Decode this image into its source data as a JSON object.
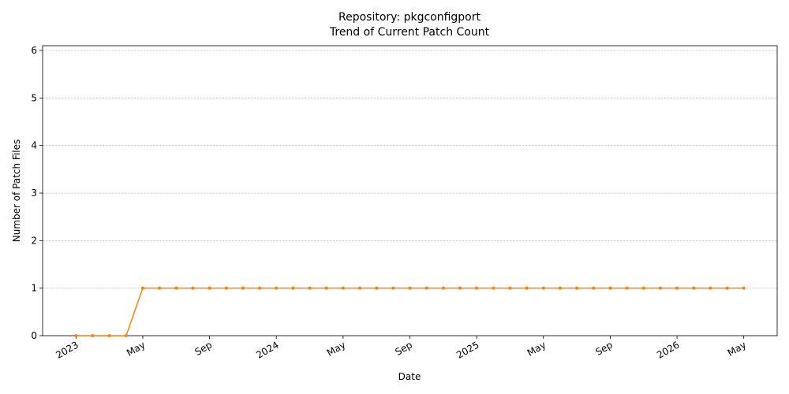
{
  "chart_data": {
    "type": "line",
    "title": "Repository: pkgconfigport",
    "subtitle": "Trend of Current Patch Count",
    "xlabel": "Date",
    "ylabel": "Number of Patch Files",
    "x": [
      "2023-01",
      "2023-02",
      "2023-03",
      "2023-04",
      "2023-05",
      "2023-06",
      "2023-07",
      "2023-08",
      "2023-09",
      "2023-10",
      "2023-11",
      "2023-12",
      "2024-01",
      "2024-02",
      "2024-03",
      "2024-04",
      "2024-05",
      "2024-06",
      "2024-07",
      "2024-08",
      "2024-09",
      "2024-10",
      "2024-11",
      "2024-12",
      "2025-01",
      "2025-02",
      "2025-03",
      "2025-04",
      "2025-05",
      "2025-06",
      "2025-07",
      "2025-08",
      "2025-09",
      "2025-10",
      "2025-11",
      "2025-12",
      "2026-01",
      "2026-02",
      "2026-03",
      "2026-04",
      "2026-05"
    ],
    "values": [
      0,
      0,
      0,
      0,
      1,
      1,
      1,
      1,
      1,
      1,
      1,
      1,
      1,
      1,
      1,
      1,
      1,
      1,
      1,
      1,
      1,
      1,
      1,
      1,
      1,
      1,
      1,
      1,
      1,
      1,
      1,
      1,
      1,
      1,
      1,
      1,
      1,
      1,
      1,
      1,
      1
    ],
    "color": "#ff7f0e",
    "xlim": [
      "2022-11",
      "2026-07"
    ],
    "xticks": [
      {
        "value": "2023-01",
        "label": "2023"
      },
      {
        "value": "2023-05",
        "label": "May"
      },
      {
        "value": "2023-09",
        "label": "Sep"
      },
      {
        "value": "2024-01",
        "label": "2024"
      },
      {
        "value": "2024-05",
        "label": "May"
      },
      {
        "value": "2024-09",
        "label": "Sep"
      },
      {
        "value": "2025-01",
        "label": "2025"
      },
      {
        "value": "2025-05",
        "label": "May"
      },
      {
        "value": "2025-09",
        "label": "Sep"
      },
      {
        "value": "2026-01",
        "label": "2026"
      },
      {
        "value": "2026-05",
        "label": "May"
      }
    ],
    "ylim": [
      0,
      6.1
    ],
    "yticks": [
      0,
      1,
      2,
      3,
      4,
      5,
      6
    ],
    "grid": true
  }
}
